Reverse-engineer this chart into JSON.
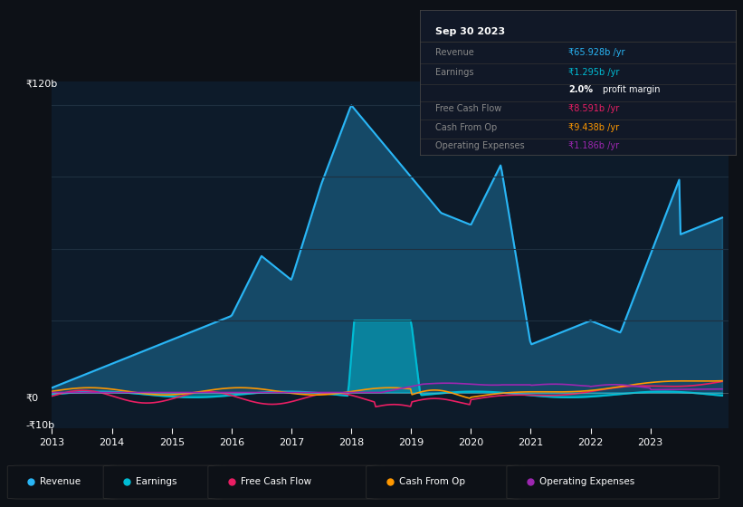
{
  "background_color": "#0d1117",
  "plot_bg_color": "#0d1b2a",
  "colors": {
    "revenue": "#29b6f6",
    "earnings": "#00bcd4",
    "free_cash_flow": "#e91e63",
    "cash_from_op": "#ff9800",
    "operating_expenses": "#9c27b0"
  },
  "x_ticks": [
    2013,
    2014,
    2015,
    2016,
    2017,
    2018,
    2019,
    2020,
    2021,
    2022,
    2023
  ],
  "tooltip": {
    "title": "Sep 30 2023",
    "rows": [
      {
        "label": "Revenue",
        "value": "₹65.928b /yr",
        "color_key": "revenue"
      },
      {
        "label": "Earnings",
        "value": "₹1.295b /yr",
        "color_key": "earnings"
      },
      {
        "label": "",
        "value": "2.0% profit margin",
        "color_key": "white"
      },
      {
        "label": "Free Cash Flow",
        "value": "₹8.591b /yr",
        "color_key": "free_cash_flow"
      },
      {
        "label": "Cash From Op",
        "value": "₹9.438b /yr",
        "color_key": "cash_from_op"
      },
      {
        "label": "Operating Expenses",
        "value": "₹1.186b /yr",
        "color_key": "operating_expenses"
      }
    ]
  },
  "legend_items": [
    {
      "label": "Revenue",
      "color_key": "revenue"
    },
    {
      "label": "Earnings",
      "color_key": "earnings"
    },
    {
      "label": "Free Cash Flow",
      "color_key": "free_cash_flow"
    },
    {
      "label": "Cash From Op",
      "color_key": "cash_from_op"
    },
    {
      "label": "Operating Expenses",
      "color_key": "operating_expenses"
    }
  ],
  "ylim": [
    -15,
    130
  ],
  "xlim": [
    2013,
    2024.3
  ],
  "y_label_120": "₹120b",
  "y_label_0": "₹0",
  "y_label_neg": "-₹10b"
}
